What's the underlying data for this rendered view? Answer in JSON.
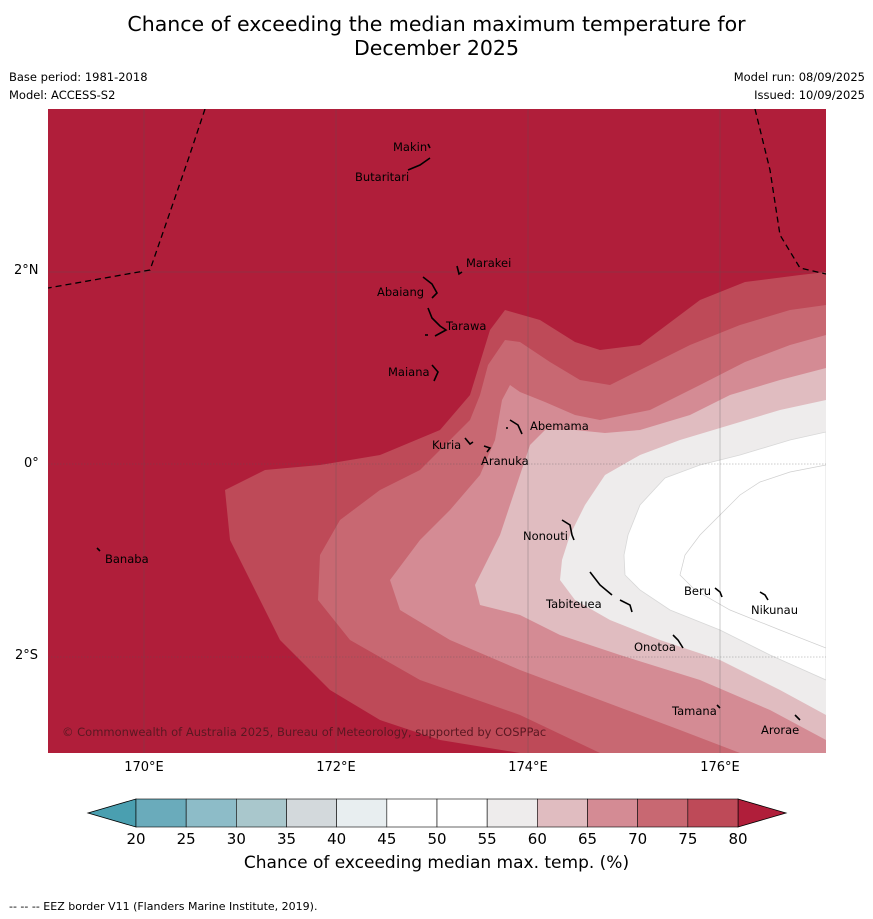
{
  "title_line1": "Chance of exceeding the median maximum temperature for",
  "title_line2": "December 2025",
  "base_period": "Base period: 1981-2018",
  "model": "Model: ACCESS-S2",
  "model_run": "Model run: 08/09/2025",
  "issued": "Issued: 10/09/2025",
  "lat_labels": [
    "2°N",
    "0°",
    "2°S"
  ],
  "lon_labels": [
    "170°E",
    "172°E",
    "174°E",
    "176°E"
  ],
  "copyright": "© Commonwealth of Australia 2025, Bureau of Meteorology, supported by COSPPac",
  "islands": [
    "Makin",
    "Butaritari",
    "Marakei",
    "Abaiang",
    "Tarawa",
    "Maiana",
    "Abemama",
    "Kuria",
    "Aranuka",
    "Banaba",
    "Nonouti",
    "Beru",
    "Nikunau",
    "Tabiteuea",
    "Onotoa",
    "Tamana",
    "Arorae"
  ],
  "colorbar": {
    "ticks": [
      "20",
      "25",
      "30",
      "35",
      "40",
      "45",
      "50",
      "55",
      "60",
      "65",
      "70",
      "75",
      "80"
    ],
    "colors": [
      "#6aabbb",
      "#8dbcc8",
      "#a9c7cc",
      "#d3d9dc",
      "#e8eef0",
      "#ffffff",
      "#ffffff",
      "#eeecec",
      "#e0bcc0",
      "#d48b94",
      "#c86872",
      "#be4a58"
    ],
    "low_color": "#4a9fb0",
    "high_color": "#b01e3a",
    "label": "Chance of exceeding median max. temp. (%)"
  },
  "footnote": "--  --  -- EEZ border V11 (Flanders Marine Institute, 2019)."
}
